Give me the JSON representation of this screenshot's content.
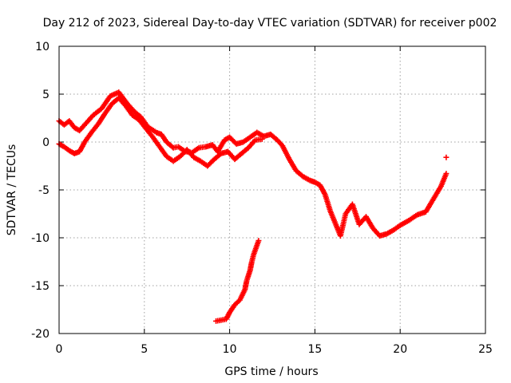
{
  "chart_data": {
    "type": "scatter",
    "title": "Day 212 of 2023, Sidereal Day-to-day VTEC variation (SDTVAR) for receiver p002",
    "xlabel": "GPS time / hours",
    "ylabel": "SDTVAR / TECUs",
    "xlim": [
      0,
      25
    ],
    "ylim": [
      -20,
      10
    ],
    "xticks": [
      0,
      5,
      10,
      15,
      20,
      25
    ],
    "yticks": [
      -20,
      -15,
      -10,
      -5,
      0,
      5,
      10
    ],
    "grid": true,
    "marker": "plus",
    "color": "#ff0000",
    "series": [
      {
        "name": "main-trace",
        "points": [
          [
            0.0,
            2.2
          ],
          [
            0.3,
            1.8
          ],
          [
            0.6,
            2.2
          ],
          [
            0.9,
            1.5
          ],
          [
            1.2,
            1.2
          ],
          [
            1.6,
            2.0
          ],
          [
            2.0,
            2.8
          ],
          [
            2.5,
            3.5
          ],
          [
            3.0,
            4.8
          ],
          [
            3.5,
            5.2
          ],
          [
            4.0,
            4.0
          ],
          [
            4.4,
            3.2
          ],
          [
            4.8,
            2.6
          ],
          [
            5.2,
            1.6
          ],
          [
            5.7,
            1.0
          ],
          [
            6.0,
            0.8
          ],
          [
            6.3,
            0.0
          ],
          [
            6.7,
            -0.6
          ],
          [
            7.0,
            -0.5
          ],
          [
            7.4,
            -1.0
          ],
          [
            7.8,
            -1.1
          ],
          [
            8.2,
            -0.6
          ],
          [
            8.6,
            -0.5
          ],
          [
            9.0,
            -0.3
          ],
          [
            9.3,
            -1.0
          ],
          [
            9.7,
            0.2
          ],
          [
            10.0,
            0.5
          ],
          [
            10.4,
            -0.2
          ],
          [
            10.8,
            0.0
          ],
          [
            11.2,
            0.5
          ],
          [
            11.6,
            1.0
          ],
          [
            12.0,
            0.6
          ],
          [
            12.4,
            0.8
          ],
          [
            12.8,
            0.2
          ],
          [
            13.1,
            -0.4
          ],
          [
            13.5,
            -1.8
          ],
          [
            13.9,
            -3.0
          ],
          [
            14.3,
            -3.6
          ],
          [
            14.7,
            -4.0
          ],
          [
            15.0,
            -4.2
          ],
          [
            15.3,
            -4.5
          ],
          [
            15.6,
            -5.5
          ],
          [
            15.9,
            -7.2
          ],
          [
            16.2,
            -8.5
          ],
          [
            16.5,
            -9.8
          ],
          [
            16.8,
            -7.5
          ],
          [
            17.2,
            -6.5
          ],
          [
            17.6,
            -8.6
          ],
          [
            18.0,
            -7.8
          ],
          [
            18.4,
            -9.0
          ],
          [
            18.8,
            -9.8
          ],
          [
            19.2,
            -9.6
          ],
          [
            19.6,
            -9.2
          ],
          [
            20.0,
            -8.7
          ],
          [
            20.5,
            -8.2
          ],
          [
            21.0,
            -7.6
          ],
          [
            21.5,
            -7.3
          ],
          [
            22.0,
            -5.8
          ],
          [
            22.4,
            -4.6
          ],
          [
            22.7,
            -3.3
          ]
        ]
      },
      {
        "name": "lower-start-trace",
        "points": [
          [
            0.0,
            -0.2
          ],
          [
            0.3,
            -0.5
          ],
          [
            0.6,
            -0.9
          ],
          [
            0.9,
            -1.2
          ],
          [
            1.2,
            -1.0
          ],
          [
            1.5,
            0.0
          ],
          [
            1.9,
            1.0
          ],
          [
            2.3,
            1.9
          ],
          [
            2.7,
            3.0
          ],
          [
            3.1,
            4.0
          ],
          [
            3.5,
            4.6
          ],
          [
            3.9,
            3.8
          ],
          [
            4.3,
            2.8
          ],
          [
            4.7,
            2.3
          ],
          [
            5.1,
            1.4
          ],
          [
            5.5,
            0.5
          ],
          [
            5.9,
            -0.5
          ],
          [
            6.3,
            -1.5
          ],
          [
            6.7,
            -2.0
          ],
          [
            7.1,
            -1.5
          ],
          [
            7.5,
            -0.8
          ],
          [
            7.9,
            -1.6
          ],
          [
            8.3,
            -2.0
          ],
          [
            8.7,
            -2.5
          ],
          [
            9.1,
            -1.8
          ],
          [
            9.5,
            -1.2
          ],
          [
            9.9,
            -1.0
          ],
          [
            10.3,
            -1.8
          ],
          [
            10.7,
            -1.2
          ],
          [
            11.1,
            -0.6
          ],
          [
            11.5,
            0.2
          ],
          [
            11.9,
            0.3
          ]
        ]
      },
      {
        "name": "lower-branch-trace",
        "points": [
          [
            9.2,
            -18.7
          ],
          [
            9.5,
            -18.6
          ],
          [
            9.8,
            -18.5
          ],
          [
            10.0,
            -17.8
          ],
          [
            10.3,
            -17.0
          ],
          [
            10.6,
            -16.5
          ],
          [
            10.9,
            -15.4
          ],
          [
            11.0,
            -14.5
          ],
          [
            11.2,
            -13.4
          ],
          [
            11.3,
            -12.5
          ],
          [
            11.4,
            -11.8
          ],
          [
            11.6,
            -10.8
          ],
          [
            11.7,
            -10.3
          ]
        ]
      },
      {
        "name": "isolated-point",
        "points": [
          [
            22.7,
            -1.6
          ]
        ]
      }
    ]
  }
}
